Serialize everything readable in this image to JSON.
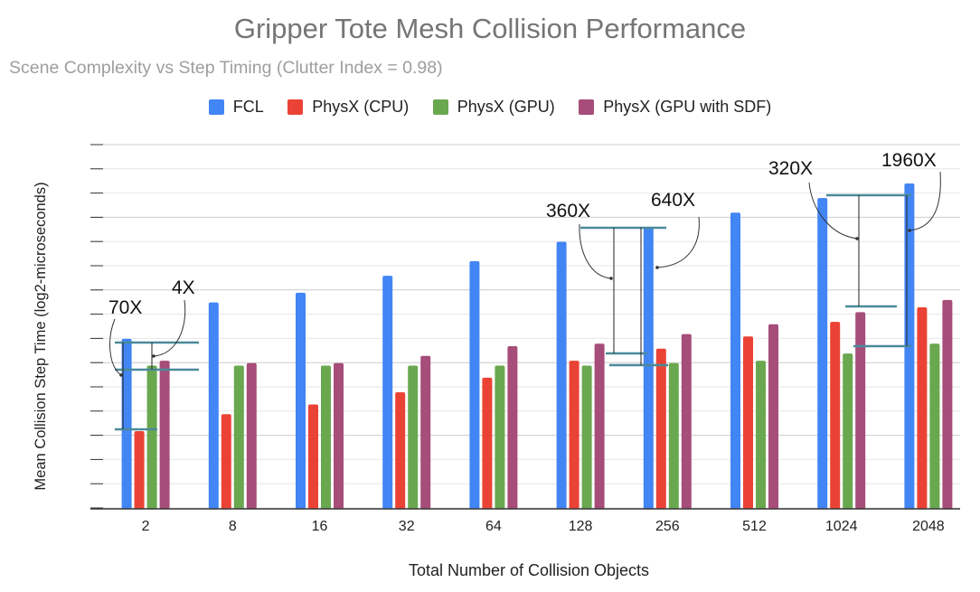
{
  "chart_data": {
    "type": "bar",
    "title": "Gripper Tote Mesh Collision Performance",
    "subtitle": "Scene Complexity vs Step Timing (Clutter Index = 0.98)",
    "xlabel": "Total Number of Collision Objects",
    "ylabel": "Mean Collision Step Time (log2-microseconds)",
    "categories": [
      "2",
      "8",
      "16",
      "32",
      "64",
      "128",
      "256",
      "512",
      "1024",
      "2048"
    ],
    "ylim": [
      0,
      15
    ],
    "y_tick_labels_shown": false,
    "grid": true,
    "legend": "top",
    "series": [
      {
        "name": "FCL",
        "color": "#4285f4",
        "values": [
          7.0,
          8.5,
          8.9,
          9.6,
          10.2,
          11.0,
          11.6,
          12.2,
          12.8,
          13.4
        ]
      },
      {
        "name": "PhysX (CPU)",
        "color": "#ea4335",
        "values": [
          3.2,
          3.9,
          4.3,
          4.8,
          5.4,
          6.1,
          6.6,
          7.1,
          7.7,
          8.3
        ]
      },
      {
        "name": "PhysX (GPU)",
        "color": "#6aa84f",
        "values": [
          5.9,
          5.9,
          5.9,
          5.9,
          5.9,
          5.9,
          6.0,
          6.1,
          6.4,
          6.8
        ]
      },
      {
        "name": "PhysX (GPU with SDF)",
        "color": "#a64d79",
        "values": [
          6.1,
          6.0,
          6.0,
          6.3,
          6.7,
          6.8,
          7.2,
          7.6,
          8.1,
          8.6
        ]
      }
    ],
    "annotations": [
      {
        "text": "70X",
        "category": "2"
      },
      {
        "text": "4X",
        "category": "2"
      },
      {
        "text": "360X",
        "category": "256"
      },
      {
        "text": "640X",
        "category": "256"
      },
      {
        "text": "320X",
        "category": "2048"
      },
      {
        "text": "1960X",
        "category": "2048"
      }
    ]
  },
  "colors": {
    "fcl": "#4285f4",
    "physx_cpu": "#ea4335",
    "physx_gpu": "#6aa84f",
    "physx_gpu_sdf": "#a64d79",
    "bracket_lines": "#4a8a9a"
  }
}
